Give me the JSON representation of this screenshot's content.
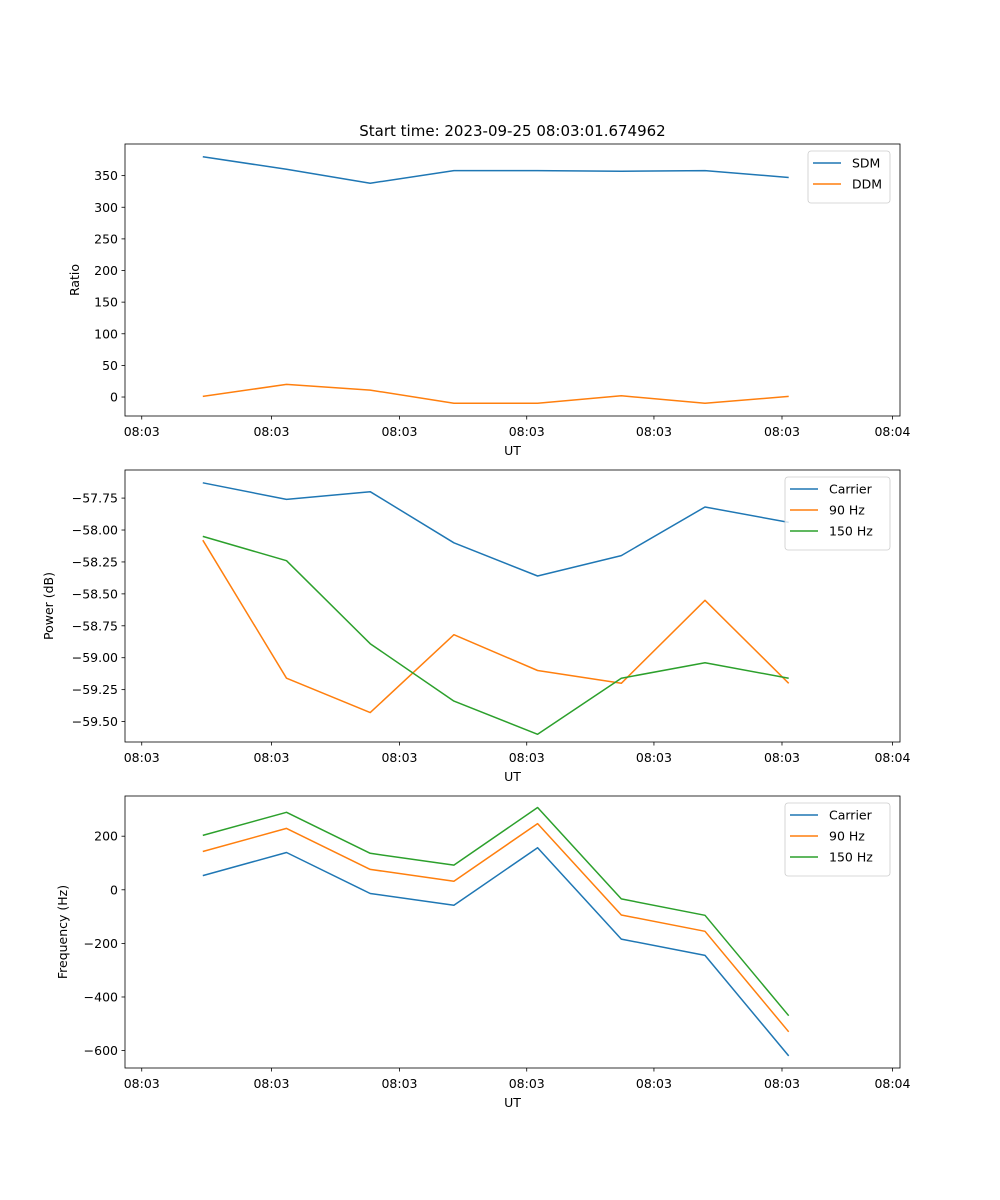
{
  "title": "Start time: 2023-09-25 08:03:01.674962",
  "colors": {
    "blue": "#1f77b4",
    "orange": "#ff7f0e",
    "green": "#2ca02c"
  },
  "chart_data": [
    {
      "type": "line",
      "ylabel": "Ratio",
      "xlabel": "UT",
      "xlim": [
        0,
        9.26
      ],
      "ylim": [
        -30,
        400
      ],
      "x": [
        0.93,
        1.93,
        2.93,
        3.93,
        4.93,
        5.93,
        6.93,
        7.93
      ],
      "xticks": [
        0.2,
        1.75,
        3.28,
        4.8,
        6.32,
        7.85,
        9.17
      ],
      "xtick_labels": [
        "08:03",
        "08:03",
        "08:03",
        "08:03",
        "08:03",
        "08:03",
        "08:04"
      ],
      "yticks": [
        0,
        50,
        100,
        150,
        200,
        250,
        300,
        350
      ],
      "ytick_labels": [
        "0",
        "50",
        "100",
        "150",
        "200",
        "250",
        "300",
        "350"
      ],
      "legend_position": "top-right",
      "series": [
        {
          "name": "SDM",
          "color": "#1f77b4",
          "values": [
            380,
            360,
            338,
            358,
            358,
            357,
            358,
            347
          ]
        },
        {
          "name": "DDM",
          "color": "#ff7f0e",
          "values": [
            1,
            20,
            11,
            -10,
            -10,
            2,
            -10,
            1
          ]
        }
      ]
    },
    {
      "type": "line",
      "ylabel": "Power (dB)",
      "xlabel": "UT",
      "xlim": [
        0,
        9.26
      ],
      "ylim": [
        -59.66,
        -57.53
      ],
      "x": [
        0.93,
        1.93,
        2.93,
        3.93,
        4.93,
        5.93,
        6.93,
        7.93
      ],
      "xticks": [
        0.2,
        1.75,
        3.28,
        4.8,
        6.32,
        7.85,
        9.17
      ],
      "xtick_labels": [
        "08:03",
        "08:03",
        "08:03",
        "08:03",
        "08:03",
        "08:03",
        "08:04"
      ],
      "yticks": [
        -59.5,
        -59.25,
        -59.0,
        -58.75,
        -58.5,
        -58.25,
        -58.0,
        -57.75
      ],
      "ytick_labels": [
        "−59.50",
        "−59.25",
        "−59.00",
        "−58.75",
        "−58.50",
        "−58.25",
        "−58.00",
        "−57.75"
      ],
      "legend_position": "top-right",
      "series": [
        {
          "name": "Carrier",
          "color": "#1f77b4",
          "values": [
            -57.63,
            -57.76,
            -57.7,
            -58.1,
            -58.36,
            -58.2,
            -57.82,
            -57.94
          ]
        },
        {
          "name": "90 Hz",
          "color": "#ff7f0e",
          "values": [
            -58.08,
            -59.16,
            -59.43,
            -58.82,
            -59.1,
            -59.2,
            -58.55,
            -59.2
          ]
        },
        {
          "name": "150 Hz",
          "color": "#2ca02c",
          "values": [
            -58.05,
            -58.24,
            -58.89,
            -59.34,
            -59.6,
            -59.16,
            -59.04,
            -59.16
          ]
        }
      ]
    },
    {
      "type": "line",
      "ylabel": "Frequency (Hz)",
      "xlabel": "UT",
      "xlim": [
        0,
        9.26
      ],
      "ylim": [
        -665,
        350
      ],
      "x": [
        0.93,
        1.93,
        2.93,
        3.93,
        4.93,
        5.93,
        6.93,
        7.93
      ],
      "xticks": [
        0.2,
        1.75,
        3.28,
        4.8,
        6.32,
        7.85,
        9.17
      ],
      "xtick_labels": [
        "08:03",
        "08:03",
        "08:03",
        "08:03",
        "08:03",
        "08:03",
        "08:04"
      ],
      "yticks": [
        -600,
        -400,
        -200,
        0,
        200
      ],
      "ytick_labels": [
        "−600",
        "−400",
        "−200",
        "0",
        "200"
      ],
      "legend_position": "top-right",
      "series": [
        {
          "name": "Carrier",
          "color": "#1f77b4",
          "values": [
            53,
            139,
            -14,
            -58,
            157,
            -184,
            -245,
            -620
          ]
        },
        {
          "name": "90 Hz",
          "color": "#ff7f0e",
          "values": [
            143,
            229,
            76,
            32,
            247,
            -94,
            -155,
            -530
          ]
        },
        {
          "name": "150 Hz",
          "color": "#2ca02c",
          "values": [
            203,
            289,
            136,
            92,
            307,
            -34,
            -95,
            -470
          ]
        }
      ]
    }
  ]
}
